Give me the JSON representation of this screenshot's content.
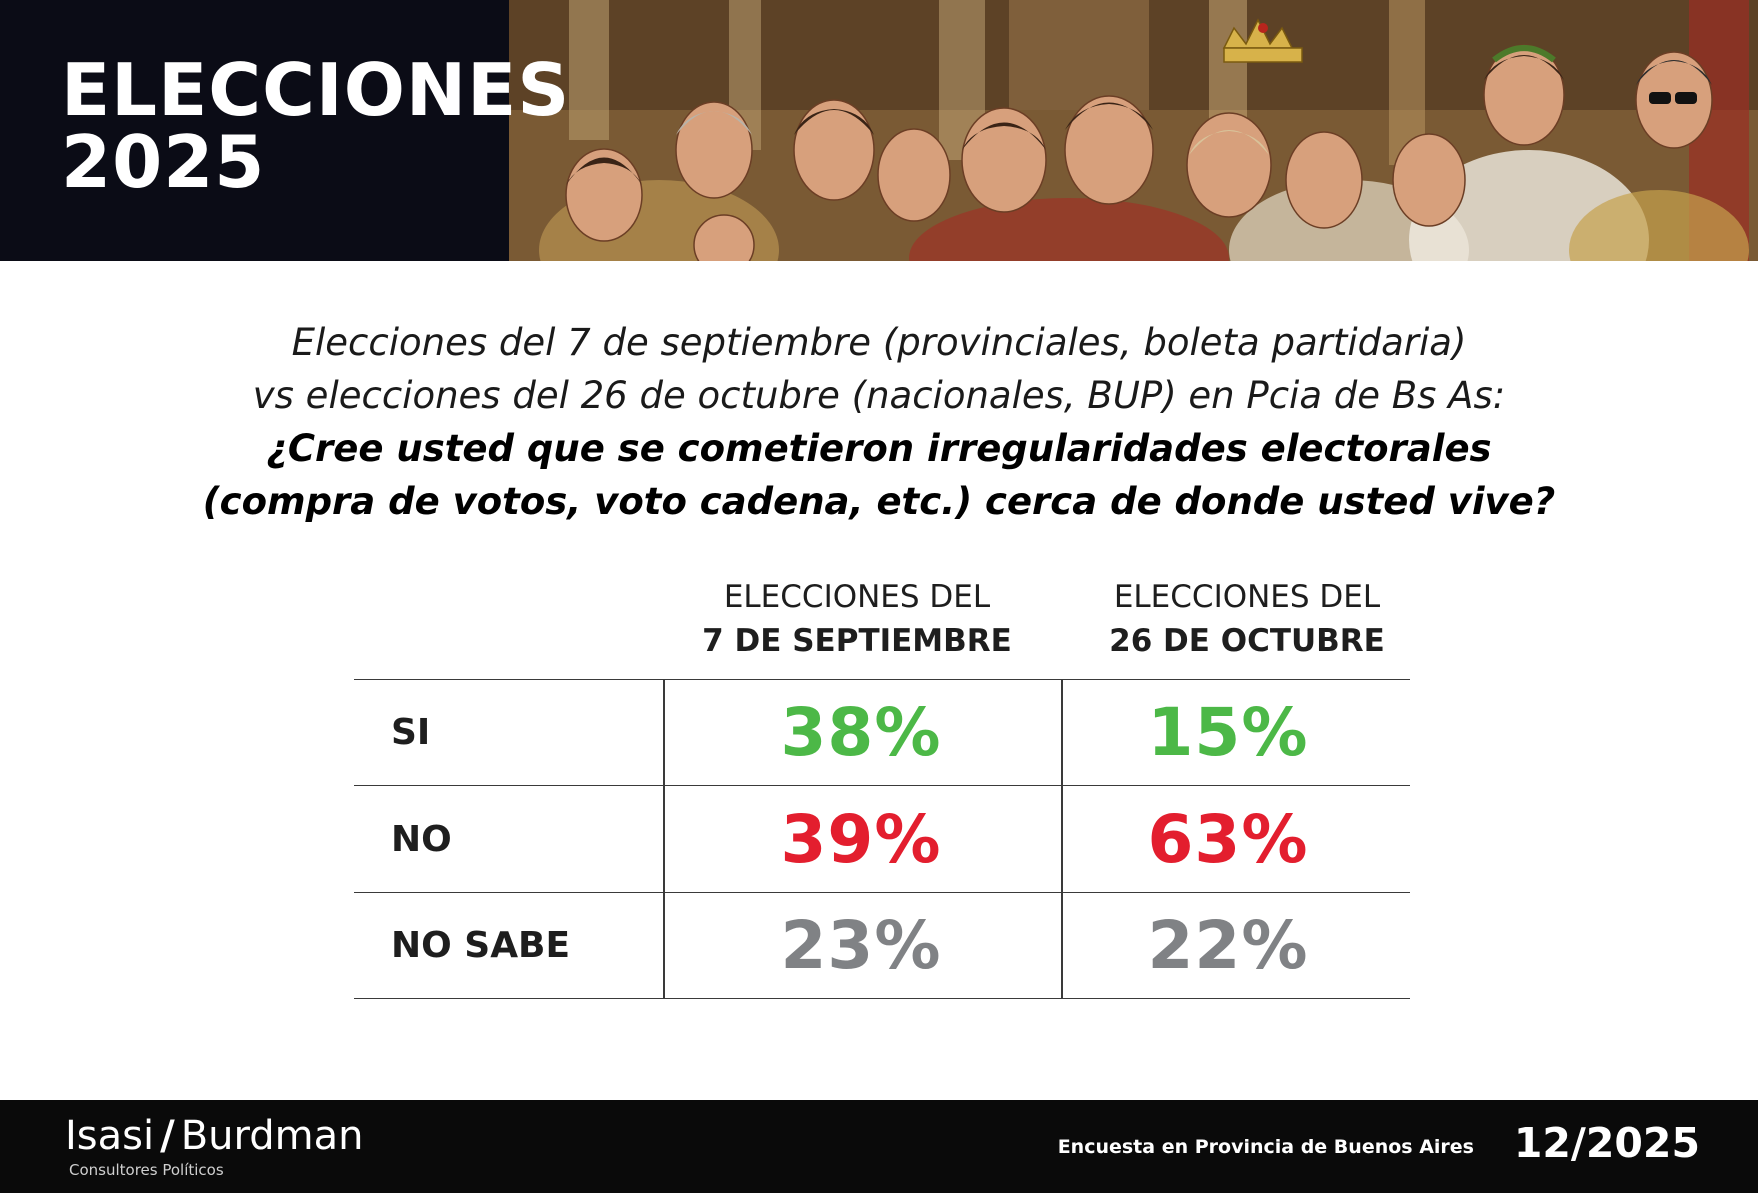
{
  "banner": {
    "title_line1": "ELECCIONES",
    "title_line2": "2025",
    "image": "collage-painting-illustration"
  },
  "question": {
    "line1": "Elecciones del 7 de septiembre (provinciales, boleta partidaria)",
    "line2": "vs elecciones del 26 de octubre (nacionales, BUP) en Pcia de Bs As:",
    "line3": "¿Cree usted que se cometieron irregularidades electorales",
    "line4": "(compra de votos, voto cadena, etc.) cerca de donde usted vive?"
  },
  "colors": {
    "si": "#4cb847",
    "no": "#e31e2e",
    "no_sabe": "#808285"
  },
  "chart_data": {
    "type": "table",
    "columns": [
      {
        "line1": "ELECCIONES DEL",
        "line2": "7 DE SEPTIEMBRE"
      },
      {
        "line1": "ELECCIONES DEL",
        "line2": "26 DE OCTUBRE"
      }
    ],
    "rows": [
      {
        "label": "SI",
        "values": [
          38,
          15
        ],
        "display": [
          "38%",
          "15%"
        ],
        "color": "#4cb847"
      },
      {
        "label": "NO",
        "values": [
          39,
          63
        ],
        "display": [
          "39%",
          "63%"
        ],
        "color": "#e31e2e"
      },
      {
        "label": "NO SABE",
        "values": [
          23,
          22
        ],
        "display": [
          "23%",
          "22%"
        ],
        "color": "#808285"
      }
    ],
    "unit": "%"
  },
  "footer": {
    "brand_left": "Isasi",
    "brand_slash": "/",
    "brand_right": "Burdman",
    "brand_sub": "Consultores Políticos",
    "note": "Encuesta en Provincia de Buenos Aires",
    "date": "12/2025"
  }
}
